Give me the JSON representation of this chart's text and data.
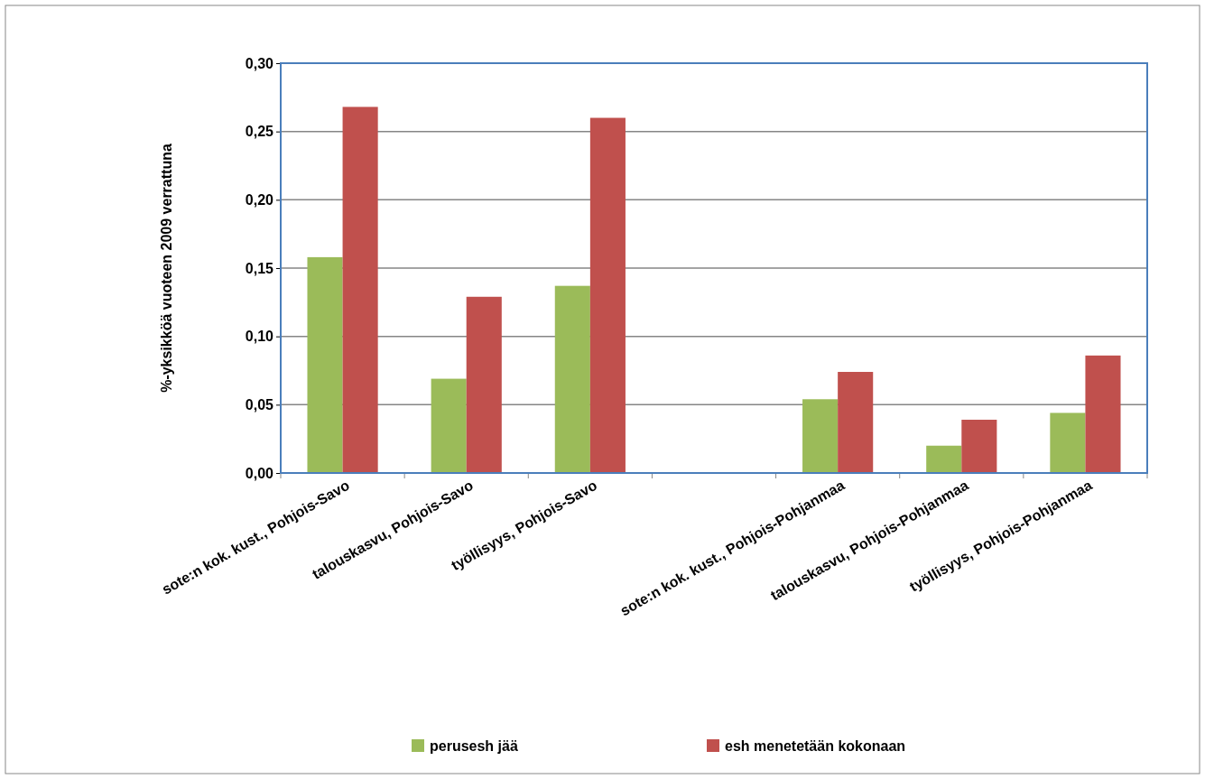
{
  "chart_data": {
    "type": "bar",
    "ylabel": "%-yksikköä vuoteen 2009 verrattuna",
    "categories": [
      "sote:n kok. kust., Pohjois-Savo",
      "talouskasvu, Pohjois-Savo",
      "työllisyys, Pohjois-Savo",
      null,
      "sote:n kok. kust., Pohjois-Pohjanmaa",
      "talouskasvu, Pohjois-Pohjanmaa",
      "työllisyys, Pohjois-Pohjanmaa"
    ],
    "series": [
      {
        "name": "perusesh jää",
        "color": "#9bbb59",
        "values": [
          0.158,
          0.069,
          0.137,
          null,
          0.054,
          0.02,
          0.044
        ]
      },
      {
        "name": "esh menetetään kokonaan",
        "color": "#c0504d",
        "values": [
          0.268,
          0.129,
          0.26,
          null,
          0.074,
          0.039,
          0.086
        ]
      }
    ],
    "ylim": [
      0,
      0.3
    ],
    "yticks": [
      {
        "value": 0,
        "label": "0,00"
      },
      {
        "value": 0.05,
        "label": "0,05"
      },
      {
        "value": 0.1,
        "label": "0,10"
      },
      {
        "value": 0.15,
        "label": "0,15"
      },
      {
        "value": 0.2,
        "label": "0,20"
      },
      {
        "value": 0.25,
        "label": "0,25"
      },
      {
        "value": 0.3,
        "label": "0,30"
      }
    ],
    "grid": "y",
    "legend": "bottom"
  }
}
